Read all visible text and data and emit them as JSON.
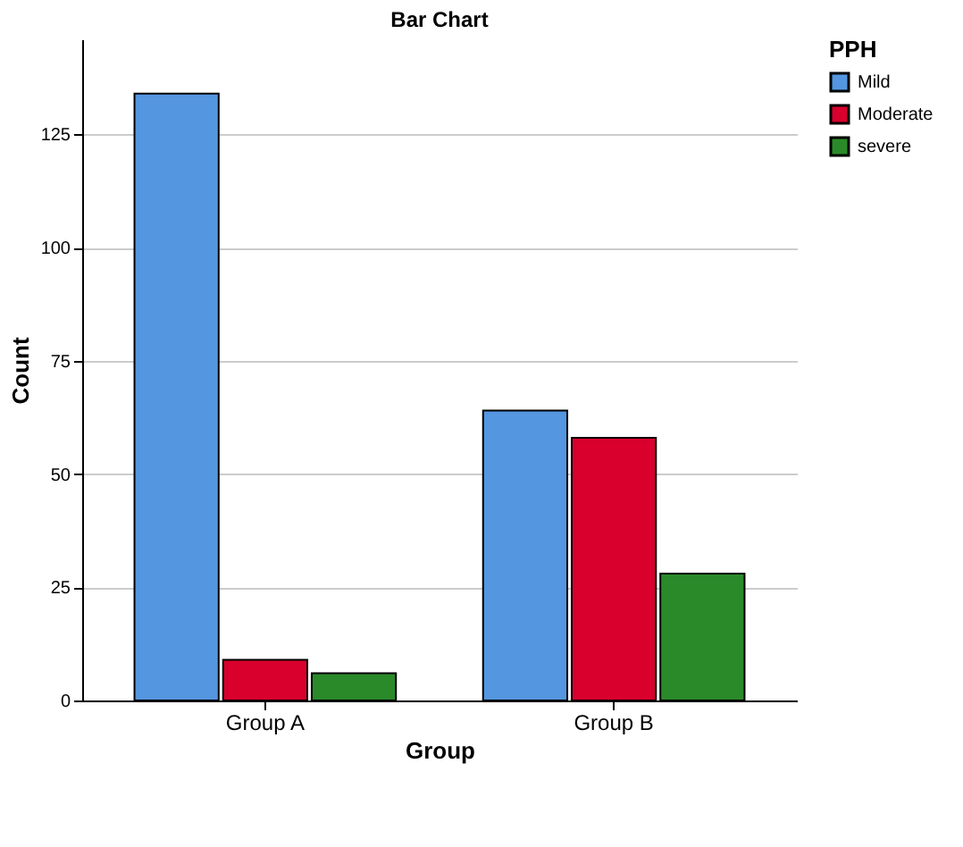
{
  "chart_data": {
    "type": "bar",
    "title": "Bar Chart",
    "xlabel": "Group",
    "ylabel": "Count",
    "legend_title": "PPH",
    "categories": [
      "Group A",
      "Group B"
    ],
    "series": [
      {
        "name": "Mild",
        "color": "#5496e0",
        "values": [
          134,
          64
        ]
      },
      {
        "name": "Moderate",
        "color": "#d9002e",
        "values": [
          9,
          58
        ]
      },
      {
        "name": "severe",
        "color": "#2a8a2a",
        "values": [
          6,
          28
        ]
      }
    ],
    "ylim": [
      0,
      146
    ],
    "yticks": [
      0,
      25,
      50,
      75,
      100,
      125
    ],
    "grid": "y",
    "legend": "top right"
  }
}
